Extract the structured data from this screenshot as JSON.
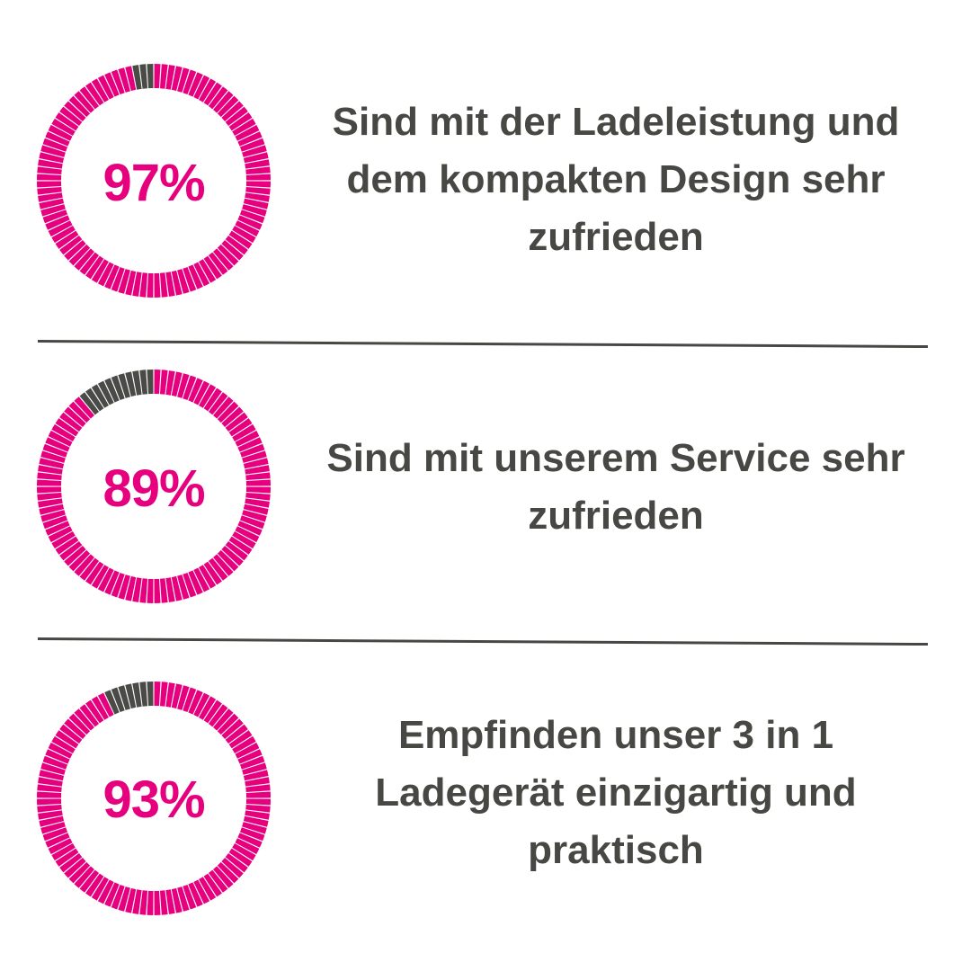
{
  "colors": {
    "filled": "#e6007e",
    "empty": "#4a4a47",
    "text": "#474744"
  },
  "chart_data": {
    "type": "donut",
    "unit": "%",
    "items": [
      {
        "value": 97,
        "label": "97%",
        "description": "Sind mit der Ladeleistung und dem kompakten Design sehr zufrieden"
      },
      {
        "value": 89,
        "label": "89%",
        "description": "Sind mit unserem Service sehr zufrieden"
      },
      {
        "value": 93,
        "label": "93%",
        "description": "Empfinden unser 3 in 1 Ladegerät einzigartig und praktisch"
      }
    ]
  }
}
